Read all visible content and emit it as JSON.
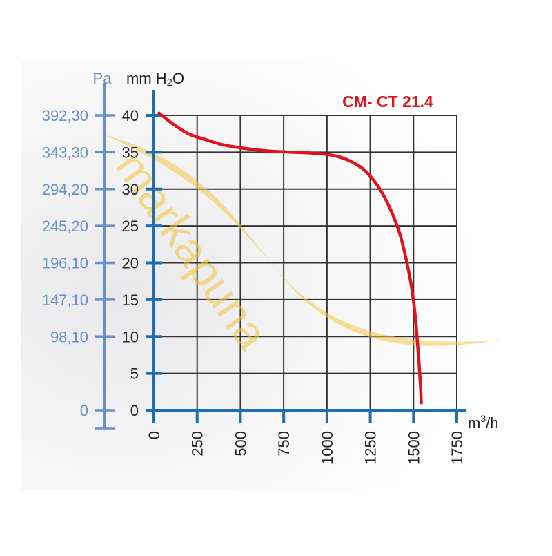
{
  "chart_data": {
    "type": "line",
    "title": "CM- CT 21.4",
    "xlabel_prefix": "m",
    "xlabel_sup": "3",
    "xlabel_suffix": "/h",
    "ylabel_primary_prefix": "mm H",
    "ylabel_primary_sub": "2",
    "ylabel_primary_suffix": "O",
    "ylabel_secondary": "Pa",
    "xlim": [
      0,
      1750
    ],
    "ylim": [
      0,
      40
    ],
    "x_ticks": [
      0,
      250,
      500,
      750,
      1000,
      1250,
      1500,
      1750
    ],
    "x_tick_labels": [
      "0",
      "250",
      "500",
      "750",
      "1000",
      "1250",
      "1500",
      "1750"
    ],
    "y_ticks": [
      0,
      5,
      10,
      15,
      20,
      25,
      30,
      35,
      40
    ],
    "y_tick_labels": [
      "0",
      "5",
      "10",
      "15",
      "20",
      "25",
      "30",
      "35",
      "40"
    ],
    "pa_ticks": [
      0,
      10,
      15,
      20,
      25,
      30,
      35,
      40
    ],
    "pa_tick_labels": [
      "0",
      "98,10",
      "147,10",
      "196,10",
      "245,20",
      "294,20",
      "343,30",
      "392,30"
    ],
    "grid": true,
    "series": [
      {
        "x": [
          30,
          100,
          200,
          300,
          400,
          500,
          600,
          700,
          800,
          900,
          1000,
          1080,
          1150,
          1220,
          1300,
          1360,
          1420,
          1460,
          1490,
          1510,
          1520,
          1530,
          1540,
          1545
        ],
        "y": [
          40.3,
          39.0,
          37.5,
          36.7,
          36.0,
          35.6,
          35.3,
          35.1,
          35.0,
          34.9,
          34.7,
          34.3,
          33.6,
          32.5,
          30.2,
          27.6,
          24.0,
          20.2,
          16.5,
          12.8,
          10.0,
          7.0,
          3.5,
          1.0
        ]
      }
    ],
    "colors": {
      "axis": "#1f6fb0",
      "grid": "#333333",
      "curve": "#e0131d",
      "pa": "#6a8ec8"
    }
  },
  "watermark": "markapuna"
}
